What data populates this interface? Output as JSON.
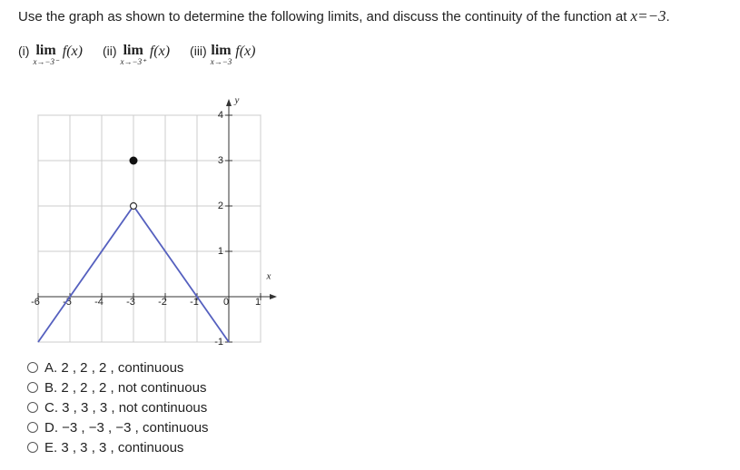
{
  "question": {
    "text": "Use the graph as shown to determine the following limits, and discuss the continuity of the function at",
    "math": "x=−3",
    "end": "."
  },
  "limits": [
    {
      "label": "(i)",
      "lim": "lim",
      "sub": "x→−3⁻",
      "func": "f(x)"
    },
    {
      "label": "(ii)",
      "lim": "lim",
      "sub": "x→−3⁺",
      "func": "f(x)"
    },
    {
      "label": "(iii)",
      "lim": "lim",
      "sub": "x→−3",
      "func": "f(x)"
    }
  ],
  "graph": {
    "xlim": [
      -6,
      1
    ],
    "ylim": [
      -1,
      4
    ],
    "xticks": [
      -6,
      -5,
      -4,
      -3,
      -2,
      -1,
      0,
      1
    ],
    "yticks": [
      -1,
      1,
      2,
      3,
      4
    ],
    "xlabel": "x",
    "ylabel": "y",
    "color": "#5560bf",
    "segments": [
      {
        "x": [
          -6,
          -3
        ],
        "y": [
          -1,
          2
        ]
      },
      {
        "x": [
          -3,
          0
        ],
        "y": [
          2,
          -1
        ]
      }
    ],
    "open_points": [
      {
        "x": -3,
        "y": 2
      }
    ],
    "closed_points": [
      {
        "x": -3,
        "y": 3
      }
    ]
  },
  "options": [
    "A. 2 , 2 , 2 , continuous",
    "B. 2 , 2 , 2 , not continuous",
    "C. 3 , 3 , 3 , not continuous",
    "D. −3 , −3 , −3 , continuous",
    "E. 3 , 3 , 3 , continuous"
  ]
}
